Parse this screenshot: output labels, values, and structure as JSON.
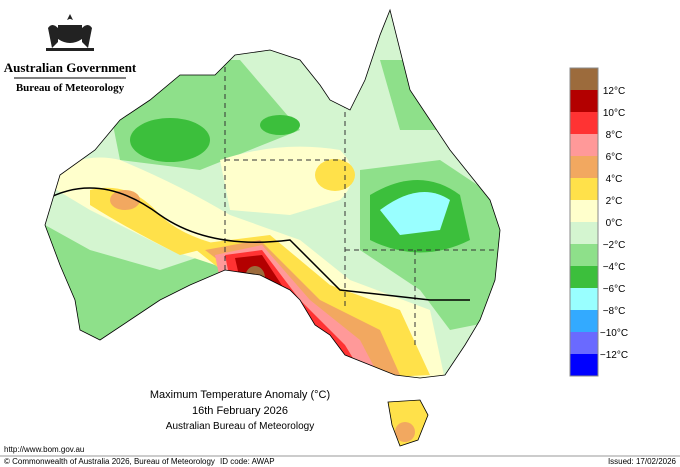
{
  "header": {
    "government": "Australian Government",
    "bureau": "Bureau of Meteorology"
  },
  "map": {
    "title": "Maximum Temperature Anomaly (°C)",
    "date": "16th February 2026",
    "source": "Australian Bureau of Meteorology"
  },
  "legend": {
    "labels": [
      "12°C",
      "10°C",
      "8°C",
      "6°C",
      "4°C",
      "2°C",
      "0°C",
      "−2°C",
      "−4°C",
      "−6°C",
      "−8°C",
      "−10°C",
      "−12°C"
    ],
    "colors": [
      "#9c6b3c",
      "#b30000",
      "#ff3333",
      "#ff9999",
      "#f2a860",
      "#ffe14a",
      "#ffffcc",
      "#d4f5d0",
      "#8ee08a",
      "#3cbf3c",
      "#99ffff",
      "#33aaff",
      "#6a6aff",
      "#0000ff"
    ]
  },
  "footer": {
    "url": "http://www.bom.gov.au",
    "copyright": "© Commonwealth of Australia 2026, Bureau of Meteorology",
    "id_code": "ID code: AWAP",
    "issued": "Issued: 17/02/2026"
  }
}
